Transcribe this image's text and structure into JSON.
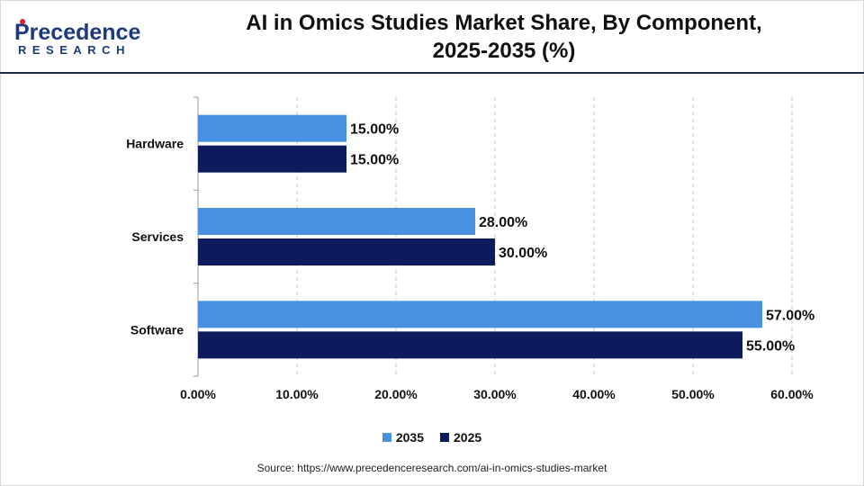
{
  "header": {
    "logo_word": "Precedence",
    "logo_sub": "RESEARCH",
    "title_line1": "AI in Omics Studies Market Share, By Component,",
    "title_line2": "2025-2035 (%)"
  },
  "colors": {
    "series_2035": "#4a90e2",
    "series_2025": "#0d1a5c",
    "logo_blue": "#1e3a7b",
    "logo_red": "#d9232d"
  },
  "source": "Source: https://www.precedenceresearch.com/ai-in-omics-studies-market",
  "chart_data": {
    "type": "bar",
    "orientation": "horizontal",
    "categories": [
      "Hardware",
      "Services",
      "Software"
    ],
    "series": [
      {
        "name": "2035",
        "values": [
          15.0,
          28.0,
          57.0
        ],
        "labels": [
          "15.00%",
          "28.00%",
          "57.00%"
        ]
      },
      {
        "name": "2025",
        "values": [
          15.0,
          30.0,
          55.0
        ],
        "labels": [
          "15.00%",
          "30.00%",
          "55.00%"
        ]
      }
    ],
    "x_ticks": [
      0,
      10,
      20,
      30,
      40,
      50,
      60
    ],
    "x_tick_labels": [
      "0.00%",
      "10.00%",
      "20.00%",
      "30.00%",
      "40.00%",
      "50.00%",
      "60.00%"
    ],
    "xlim": [
      0,
      60
    ],
    "grid": "vertical dashed",
    "legend_position": "bottom"
  }
}
